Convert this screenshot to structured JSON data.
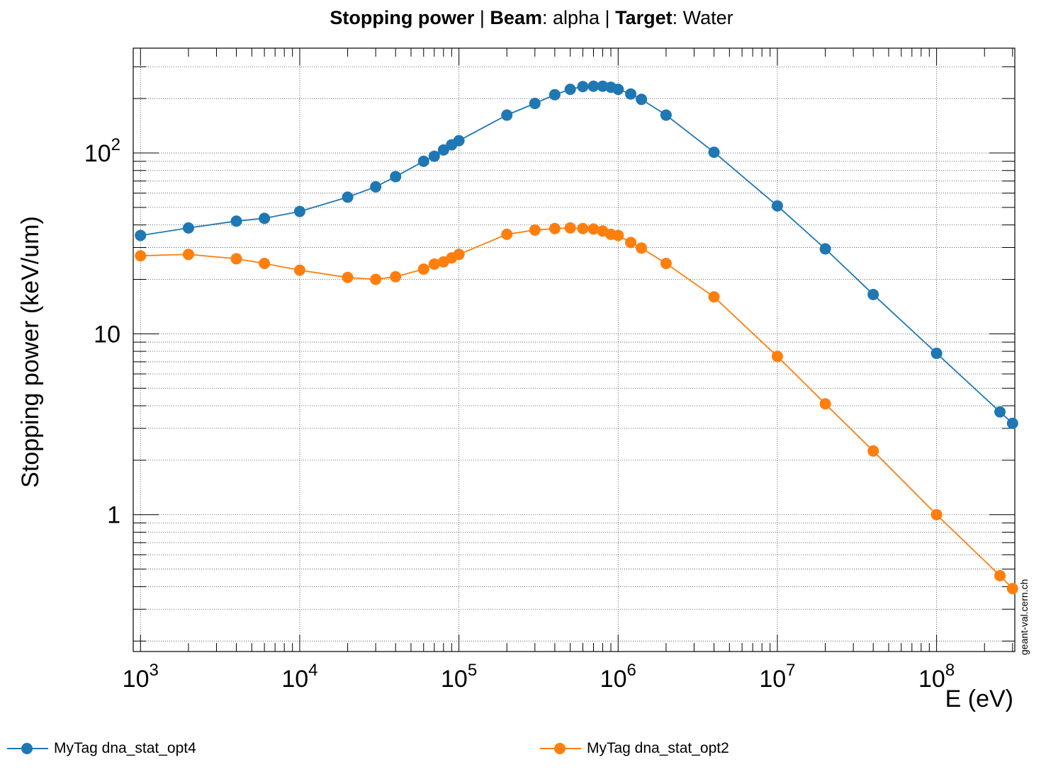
{
  "header": {
    "part1_bold": "Stopping power",
    "sep1": "  | ",
    "part2_bold": "Beam",
    "part2_rest": ": alpha | ",
    "part3_bold": "Target",
    "part3_rest": ": Water"
  },
  "watermark": "geant-val.cern.ch",
  "chart_data": {
    "type": "line",
    "xlabel": "E (eV)",
    "ylabel": "Stopping power (keV/um)",
    "xscale": "log",
    "yscale": "log",
    "xlim": [
      900,
      310000000
    ],
    "ylim": [
      0.175,
      380
    ],
    "grid": true,
    "legend_position": "bottom",
    "x_tick_labels": [
      {
        "value": 1000,
        "base": "10",
        "exp": "3"
      },
      {
        "value": 10000,
        "base": "10",
        "exp": "4"
      },
      {
        "value": 100000,
        "base": "10",
        "exp": "5"
      },
      {
        "value": 1000000,
        "base": "10",
        "exp": "6"
      },
      {
        "value": 10000000,
        "base": "10",
        "exp": "7"
      },
      {
        "value": 100000000,
        "base": "10",
        "exp": "8"
      }
    ],
    "y_tick_labels": [
      {
        "value": 1,
        "base": "1",
        "exp": ""
      },
      {
        "value": 10,
        "base": "10",
        "exp": ""
      },
      {
        "value": 100,
        "base": "10",
        "exp": "2"
      }
    ],
    "series": [
      {
        "name": "MyTag dna_stat_opt4",
        "color": "#1f77b4",
        "x": [
          1000,
          2000,
          4000,
          6000,
          10000,
          20000,
          30000,
          40000,
          60000,
          70000,
          80000,
          90000,
          100000,
          200000,
          300000,
          400000,
          500000,
          600000,
          700000,
          800000,
          900000,
          1000000,
          1200000,
          1400000,
          2000000,
          4000000,
          10000000,
          20000000,
          40000000,
          100000000,
          250000000,
          300000000
        ],
        "y": [
          35,
          38.5,
          42,
          43.5,
          47.5,
          57,
          65,
          74,
          90,
          96,
          104,
          111,
          117,
          162,
          188,
          210,
          225,
          233,
          234,
          234,
          231,
          225,
          212,
          198,
          162,
          101,
          51,
          29.5,
          16.5,
          7.8,
          3.7,
          3.2
        ]
      },
      {
        "name": "MyTag dna_stat_opt2",
        "color": "#ff7f0e",
        "x": [
          1000,
          2000,
          4000,
          6000,
          10000,
          20000,
          30000,
          40000,
          60000,
          70000,
          80000,
          90000,
          100000,
          200000,
          300000,
          400000,
          500000,
          600000,
          700000,
          800000,
          900000,
          1000000,
          1200000,
          1400000,
          2000000,
          4000000,
          10000000,
          20000000,
          40000000,
          100000000,
          250000000,
          300000000
        ],
        "y": [
          27,
          27.5,
          26,
          24.5,
          22.5,
          20.5,
          20,
          20.7,
          22.8,
          24.3,
          25,
          26.3,
          27.5,
          35.5,
          37.5,
          38.2,
          38.5,
          38.2,
          38,
          37,
          35.5,
          35,
          32,
          29.8,
          24.5,
          16,
          7.5,
          4.1,
          2.25,
          1.0,
          0.46,
          0.39
        ]
      }
    ]
  }
}
